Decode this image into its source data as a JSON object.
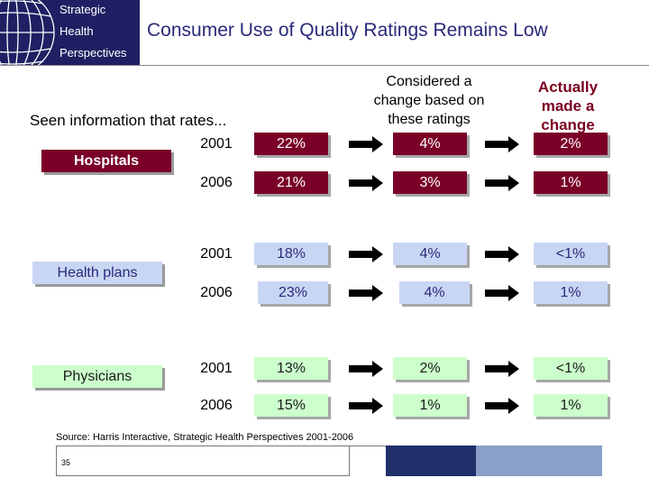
{
  "logo": {
    "line1": "Strategic",
    "line2": "Health",
    "line3": "Perspectives"
  },
  "title": "Consumer Use of Quality Ratings Remains Low",
  "subheading": "Seen information that rates...",
  "column_headers": {
    "considered_line1": "Considered a",
    "considered_line2": "change based on",
    "considered_line3": "these ratings",
    "actual_line1": "Actually",
    "actual_line2": "made a",
    "actual_line3": "change"
  },
  "categories": {
    "hospitals": {
      "label": "Hospitals",
      "rows": [
        {
          "year": "2001",
          "seen": "22%",
          "considered": "4%",
          "made": "2%"
        },
        {
          "year": "2006",
          "seen": "21%",
          "considered": "3%",
          "made": "1%"
        }
      ]
    },
    "health_plans": {
      "label": "Health plans",
      "rows": [
        {
          "year": "2001",
          "seen": "18%",
          "considered": "4%",
          "made": "<1%"
        },
        {
          "year": "2006",
          "seen": "23%",
          "considered": "4%",
          "made": "1%"
        }
      ]
    },
    "physicians": {
      "label": "Physicians",
      "rows": [
        {
          "year": "2001",
          "seen": "13%",
          "considered": "2%",
          "made": "<1%"
        },
        {
          "year": "2006",
          "seen": "15%",
          "considered": "1%",
          "made": "1%"
        }
      ]
    }
  },
  "source": "Source: Harris Interactive, Strategic Health Perspectives 2001-2006",
  "page_number": "35",
  "colors": {
    "hospitals": "#7a0028",
    "health_plans": "#c8d6f4",
    "physicians": "#ccffcc",
    "title": "#2a2a7a",
    "logo_bg": "#1f1f63"
  }
}
